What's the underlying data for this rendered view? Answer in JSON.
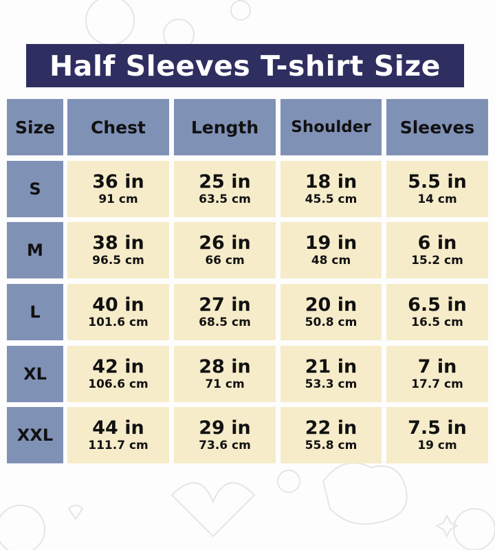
{
  "title": "Half Sleeves T-shirt Size",
  "colors": {
    "title_bg": "#2f2e61",
    "header_bg": "#8091b6",
    "cell_bg": "#f6ecca"
  },
  "table": {
    "headers": [
      "Size",
      "Chest",
      "Length",
      "Shoulder",
      "Sleeves"
    ],
    "rows": [
      {
        "size": "S",
        "values": [
          {
            "in": "36 in",
            "cm": "91 cm"
          },
          {
            "in": "25 in",
            "cm": "63.5 cm"
          },
          {
            "in": "18 in",
            "cm": "45.5 cm"
          },
          {
            "in": "5.5 in",
            "cm": "14 cm"
          }
        ]
      },
      {
        "size": "M",
        "values": [
          {
            "in": "38 in",
            "cm": "96.5 cm"
          },
          {
            "in": "26 in",
            "cm": "66 cm"
          },
          {
            "in": "19 in",
            "cm": "48 cm"
          },
          {
            "in": "6 in",
            "cm": "15.2 cm"
          }
        ]
      },
      {
        "size": "L",
        "values": [
          {
            "in": "40 in",
            "cm": "101.6 cm"
          },
          {
            "in": "27 in",
            "cm": "68.5 cm"
          },
          {
            "in": "20 in",
            "cm": "50.8 cm"
          },
          {
            "in": "6.5 in",
            "cm": "16.5 cm"
          }
        ]
      },
      {
        "size": "XL",
        "values": [
          {
            "in": "42 in",
            "cm": "106.6 cm"
          },
          {
            "in": "28 in",
            "cm": "71 cm"
          },
          {
            "in": "21 in",
            "cm": "53.3 cm"
          },
          {
            "in": "7 in",
            "cm": "17.7 cm"
          }
        ]
      },
      {
        "size": "XXL",
        "values": [
          {
            "in": "44 in",
            "cm": "111.7 cm"
          },
          {
            "in": "29 in",
            "cm": "73.6 cm"
          },
          {
            "in": "22 in",
            "cm": "55.8 cm"
          },
          {
            "in": "7.5 in",
            "cm": "19 cm"
          }
        ]
      }
    ]
  }
}
